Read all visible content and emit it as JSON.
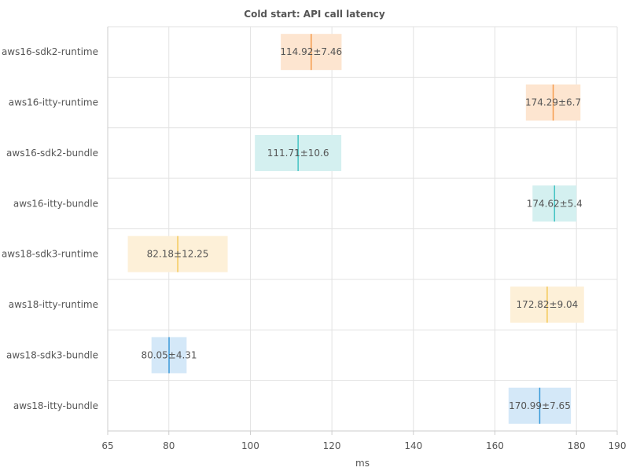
{
  "chart_data": {
    "type": "bar",
    "title": "Cold start: API call latency",
    "xlabel": "ms",
    "ylabel": "",
    "xlim": [
      65,
      190
    ],
    "xticks": [
      65,
      80,
      100,
      120,
      140,
      160,
      180,
      190
    ],
    "grid": true,
    "legend": "none",
    "categories": [
      "aws16-sdk2-runtime",
      "aws16-itty-runtime",
      "aws16-sdk2-bundle",
      "aws16-itty-bundle",
      "aws18-sdk3-runtime",
      "aws18-itty-runtime",
      "aws18-sdk3-bundle",
      "aws18-itty-bundle"
    ],
    "values": [
      114.92,
      174.29,
      111.71,
      174.62,
      82.18,
      172.82,
      80.05,
      170.99
    ],
    "errors": [
      7.46,
      6.7,
      10.6,
      5.4,
      12.25,
      9.04,
      4.31,
      7.65
    ],
    "labels": [
      "114.92±7.46",
      "174.29±6.7",
      "111.71±10.6",
      "174.62±5.4",
      "82.18±12.25",
      "172.82±9.04",
      "80.05±4.31",
      "170.99±7.65"
    ],
    "colors": [
      {
        "fill": "#fde5d0",
        "line": "#f59b4c"
      },
      {
        "fill": "#fde5d0",
        "line": "#f59b4c"
      },
      {
        "fill": "#d4f0f0",
        "line": "#45c4c4"
      },
      {
        "fill": "#d4f0f0",
        "line": "#45c4c4"
      },
      {
        "fill": "#fdf0d8",
        "line": "#f4c95a"
      },
      {
        "fill": "#fdf0d8",
        "line": "#f4c95a"
      },
      {
        "fill": "#d4e8f8",
        "line": "#3a9ad9"
      },
      {
        "fill": "#d4e8f8",
        "line": "#3a9ad9"
      }
    ]
  }
}
